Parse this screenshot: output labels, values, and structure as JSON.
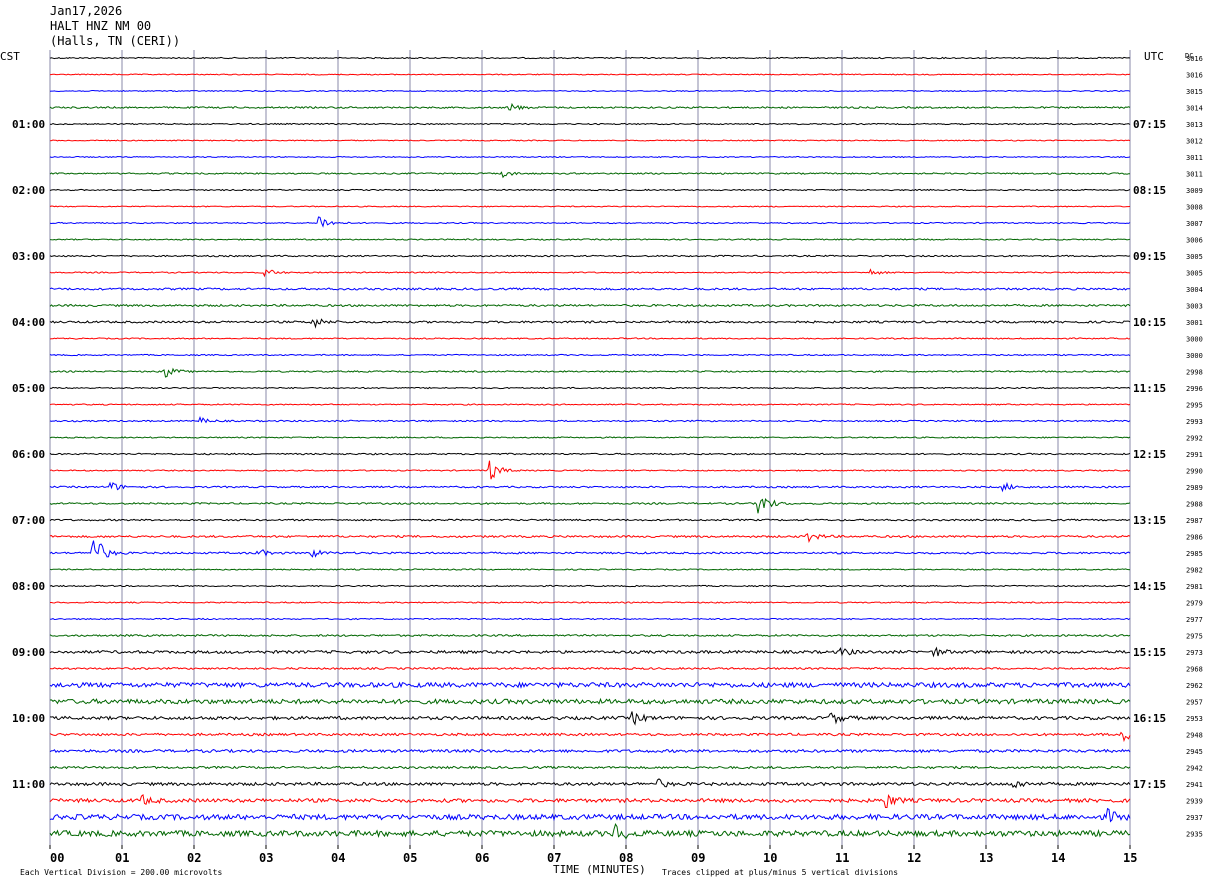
{
  "header": {
    "date": "Jan17,2026",
    "station": "HALT HNZ NM 00",
    "location": "(Halls, TN (CERI))"
  },
  "left_axis_label": "CST",
  "right_axis_label": "UTC",
  "dc_label": "DC",
  "footer": {
    "division_note": "Each Vertical Division =  200.00 microvolts",
    "clip_note": "Traces clipped at plus/minus 5 vertical divisions"
  },
  "chart_data": {
    "type": "line",
    "xlabel": "TIME (MINUTES)",
    "xlim": [
      0,
      15
    ],
    "x_ticks": [
      "00",
      "01",
      "02",
      "03",
      "04",
      "05",
      "06",
      "07",
      "08",
      "09",
      "10",
      "11",
      "12",
      "13",
      "14",
      "15"
    ],
    "trace_colors": [
      "#000000",
      "#ff0000",
      "#0000ff",
      "#006600"
    ],
    "grid_color": "#8888aa",
    "cst_hour_labels": [
      "01:00",
      "02:00",
      "03:00",
      "04:00",
      "05:00",
      "06:00",
      "07:00",
      "08:00",
      "09:00",
      "10:00",
      "11:00"
    ],
    "utc_hour_labels": [
      "07:15",
      "08:15",
      "09:15",
      "10:15",
      "11:15",
      "12:15",
      "13:15",
      "14:15",
      "15:15",
      "16:15",
      "17:15"
    ],
    "dc_offsets": [
      3016,
      3016,
      3015,
      3014,
      3013,
      3012,
      3011,
      3011,
      3009,
      3008,
      3007,
      3006,
      3005,
      3005,
      3004,
      3003,
      3001,
      3000,
      3000,
      2998,
      2996,
      2995,
      2993,
      2992,
      2991,
      2990,
      2989,
      2988,
      2987,
      2986,
      2985,
      2982,
      2981,
      2979,
      2977,
      2975,
      2973,
      2968,
      2962,
      2957,
      2953,
      2948,
      2945,
      2942,
      2941,
      2939,
      2937,
      2935
    ],
    "noise_levels": [
      0.6,
      0.5,
      0.5,
      0.8,
      0.6,
      0.5,
      0.5,
      0.7,
      0.6,
      0.5,
      0.6,
      0.6,
      0.7,
      0.6,
      1.0,
      1.0,
      1.0,
      0.6,
      0.6,
      0.7,
      0.6,
      0.6,
      0.7,
      0.6,
      0.7,
      0.6,
      0.8,
      0.8,
      0.8,
      1.0,
      0.9,
      0.6,
      0.6,
      0.6,
      0.6,
      0.9,
      1.4,
      0.9,
      2.4,
      2.3,
      1.6,
      1.2,
      1.4,
      1.1,
      1.5,
      1.8,
      2.6,
      2.8
    ],
    "events": [
      {
        "trace": 3,
        "minute": 6.4,
        "amplitude": 4
      },
      {
        "trace": 7,
        "minute": 6.3,
        "amplitude": 3
      },
      {
        "trace": 10,
        "minute": 3.75,
        "amplitude": 8
      },
      {
        "trace": 13,
        "minute": 3.0,
        "amplitude": 4
      },
      {
        "trace": 13,
        "minute": 11.4,
        "amplitude": 3
      },
      {
        "trace": 16,
        "minute": 3.65,
        "amplitude": 6
      },
      {
        "trace": 19,
        "minute": 1.6,
        "amplitude": 6
      },
      {
        "trace": 22,
        "minute": 2.1,
        "amplitude": 3
      },
      {
        "trace": 25,
        "minute": 6.1,
        "amplitude": 12
      },
      {
        "trace": 26,
        "minute": 0.85,
        "amplitude": 5
      },
      {
        "trace": 26,
        "minute": 13.25,
        "amplitude": 4
      },
      {
        "trace": 27,
        "minute": 9.85,
        "amplitude": 14
      },
      {
        "trace": 29,
        "minute": 10.5,
        "amplitude": 7
      },
      {
        "trace": 30,
        "minute": 0.6,
        "amplitude": 22
      },
      {
        "trace": 30,
        "minute": 2.9,
        "amplitude": 4
      },
      {
        "trace": 30,
        "minute": 3.65,
        "amplitude": 4
      },
      {
        "trace": 36,
        "minute": 11.0,
        "amplitude": 4
      },
      {
        "trace": 36,
        "minute": 12.3,
        "amplitude": 4
      },
      {
        "trace": 40,
        "minute": 8.1,
        "amplitude": 6
      },
      {
        "trace": 40,
        "minute": 10.85,
        "amplitude": 6
      },
      {
        "trace": 41,
        "minute": 14.9,
        "amplitude": 7
      },
      {
        "trace": 44,
        "minute": 8.45,
        "amplitude": 4
      },
      {
        "trace": 44,
        "minute": 13.4,
        "amplitude": 4
      },
      {
        "trace": 45,
        "minute": 1.3,
        "amplitude": 4
      },
      {
        "trace": 45,
        "minute": 11.6,
        "amplitude": 8
      },
      {
        "trace": 46,
        "minute": 14.7,
        "amplitude": 6
      },
      {
        "trace": 47,
        "minute": 7.85,
        "amplitude": 9
      }
    ]
  }
}
